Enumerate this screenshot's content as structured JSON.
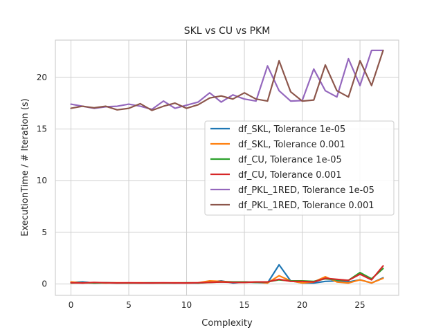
{
  "chart_data": {
    "type": "line",
    "title": "SKL vs CU vs PKM",
    "xlabel": "Complexity",
    "ylabel": "ExecutionTime / # Iteration (s)",
    "xlim": [
      -1.35,
      28.35
    ],
    "ylim": [
      -1.1,
      23.6
    ],
    "xticks": [
      0,
      5,
      10,
      15,
      20,
      25
    ],
    "yticks": [
      0,
      5,
      10,
      15,
      20
    ],
    "grid": true,
    "legend_position": "center-right",
    "x": [
      0,
      1,
      2,
      3,
      4,
      5,
      6,
      7,
      8,
      9,
      10,
      11,
      12,
      13,
      14,
      15,
      16,
      17,
      18,
      19,
      20,
      21,
      22,
      23,
      24,
      25,
      26,
      27
    ],
    "series": [
      {
        "name": "df_SKL, Tolerance 1e-05",
        "color": "#1f77b4",
        "values": [
          0.15,
          0.2,
          0.1,
          0.12,
          0.1,
          0.1,
          0.1,
          0.08,
          0.1,
          0.1,
          0.1,
          0.1,
          0.2,
          0.3,
          0.1,
          0.2,
          0.15,
          0.1,
          1.85,
          0.3,
          0.1,
          0.1,
          0.25,
          0.3,
          0.2,
          0.4,
          0.1,
          0.6
        ]
      },
      {
        "name": "df_SKL, Tolerance 0.001",
        "color": "#ff7f0e",
        "values": [
          0.2,
          0.1,
          0.12,
          0.1,
          0.12,
          0.1,
          0.12,
          0.1,
          0.1,
          0.12,
          0.1,
          0.12,
          0.3,
          0.25,
          0.2,
          0.15,
          0.2,
          0.1,
          0.8,
          0.3,
          0.1,
          0.2,
          0.7,
          0.2,
          0.1,
          0.4,
          0.1,
          0.55
        ]
      },
      {
        "name": "df_CU, Tolerance 1e-05",
        "color": "#2ca02c",
        "values": [
          0.1,
          0.12,
          0.1,
          0.12,
          0.1,
          0.1,
          0.1,
          0.12,
          0.1,
          0.1,
          0.12,
          0.1,
          0.15,
          0.2,
          0.2,
          0.2,
          0.15,
          0.2,
          0.4,
          0.3,
          0.3,
          0.25,
          0.5,
          0.4,
          0.35,
          1.1,
          0.5,
          1.5
        ]
      },
      {
        "name": "df_CU, Tolerance 0.001",
        "color": "#d62728",
        "values": [
          0.12,
          0.1,
          0.15,
          0.12,
          0.1,
          0.12,
          0.1,
          0.1,
          0.12,
          0.1,
          0.1,
          0.12,
          0.15,
          0.2,
          0.15,
          0.15,
          0.2,
          0.2,
          0.45,
          0.25,
          0.25,
          0.2,
          0.55,
          0.45,
          0.35,
          0.95,
          0.4,
          1.75
        ]
      },
      {
        "name": "df_PKL_1RED, Tolerance 1e-05",
        "color": "#9467bd",
        "values": [
          17.4,
          17.2,
          17.0,
          17.15,
          17.2,
          17.4,
          17.2,
          16.9,
          17.7,
          17.0,
          17.3,
          17.6,
          18.5,
          17.6,
          18.3,
          17.9,
          17.7,
          21.1,
          18.7,
          17.7,
          17.75,
          20.8,
          18.7,
          18.1,
          21.8,
          19.2,
          22.6,
          22.6
        ]
      },
      {
        "name": "df_PKL_1RED, Tolerance 0.001",
        "color": "#8c564b",
        "values": [
          17.0,
          17.2,
          17.05,
          17.2,
          16.85,
          17.0,
          17.45,
          16.8,
          17.2,
          17.5,
          17.0,
          17.35,
          18.0,
          18.2,
          17.9,
          18.5,
          17.9,
          17.7,
          21.6,
          18.6,
          17.7,
          17.8,
          21.2,
          18.7,
          18.1,
          21.6,
          19.2,
          22.6
        ]
      }
    ]
  }
}
